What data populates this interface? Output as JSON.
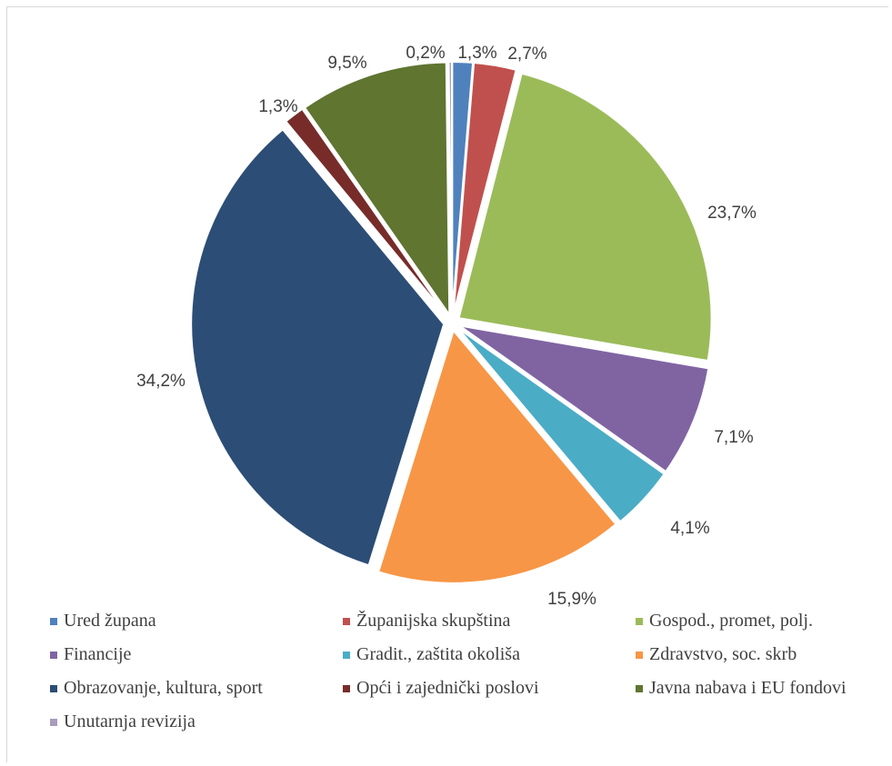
{
  "chart_data": {
    "type": "pie",
    "title": "",
    "categories": [
      "Ured župana",
      "Županijska skupština",
      "Gospod., promet, polj.",
      "Financije",
      "Gradit., zaštita okoliša",
      "Zdravstvo, soc. skrb",
      "Obrazovanje, kultura, sport",
      "Opći i zajednički poslovi",
      "Javna nabava i EU fondovi",
      "Unutarnja revizija"
    ],
    "values": [
      1.3,
      2.7,
      23.7,
      7.1,
      4.1,
      15.9,
      34.2,
      1.3,
      9.5,
      0.2
    ],
    "labels": [
      "1,3%",
      "2,7%",
      "23,7%",
      "7,1%",
      "4,1%",
      "15,9%",
      "34,2%",
      "1,3%",
      "9,5%",
      "0,2%"
    ],
    "colors": [
      "#4f81bd",
      "#c0504d",
      "#9bbb59",
      "#8064a2",
      "#4bacc6",
      "#f79646",
      "#2c4d75",
      "#772c2a",
      "#5f7530",
      "#a99bbd"
    ],
    "legend_position": "bottom"
  }
}
